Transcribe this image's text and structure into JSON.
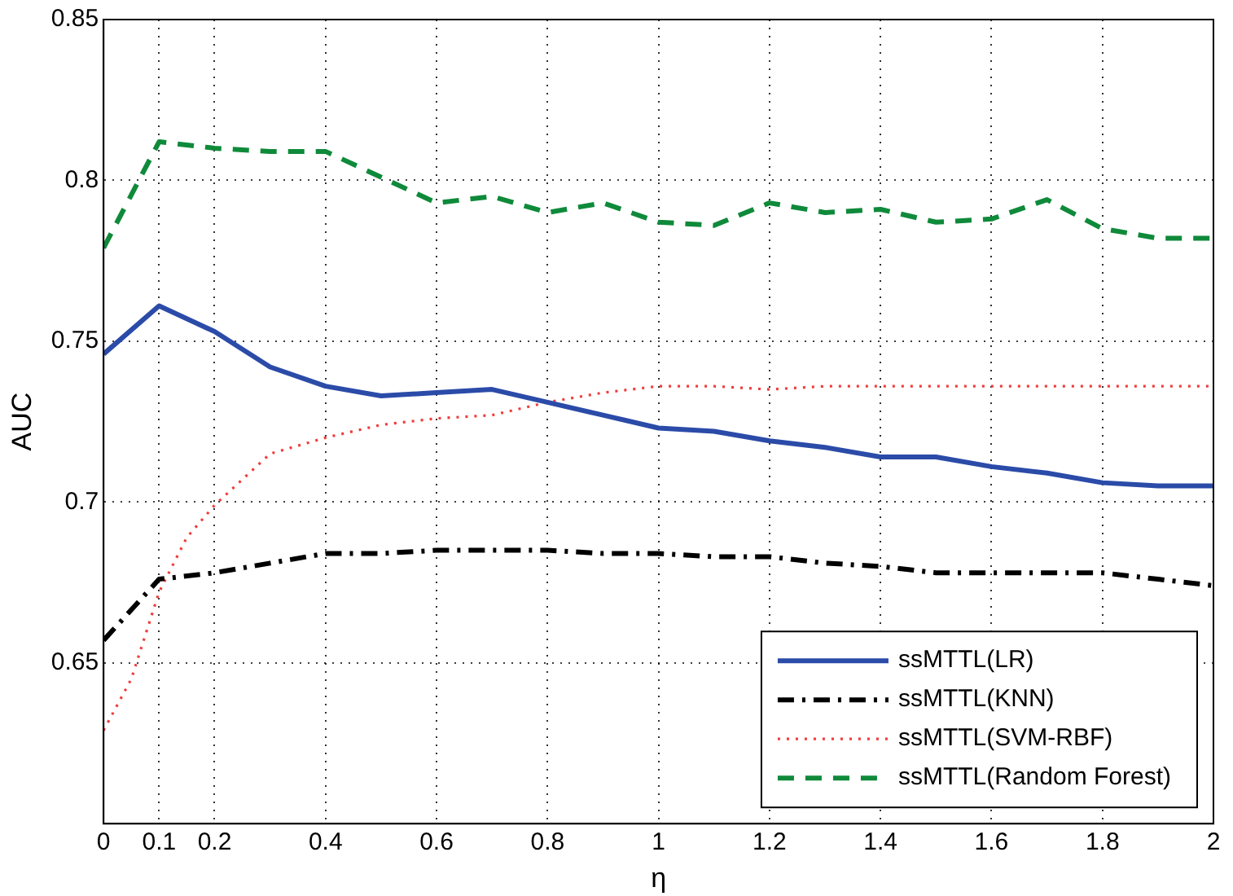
{
  "chart_data": {
    "type": "line",
    "xlabel": "η",
    "ylabel": "AUC",
    "x": [
      0,
      0.1,
      0.2,
      0.3,
      0.4,
      0.5,
      0.6,
      0.7,
      0.8,
      0.9,
      1.0,
      1.1,
      1.2,
      1.3,
      1.4,
      1.5,
      1.6,
      1.7,
      1.8,
      1.9,
      2.0
    ],
    "series": [
      {
        "name": "ssMTTL(LR)",
        "color": "#2b4ba8",
        "line_style": "solid",
        "values": [
          0.746,
          0.761,
          0.753,
          0.742,
          0.736,
          0.733,
          0.734,
          0.735,
          0.731,
          0.727,
          0.723,
          0.722,
          0.719,
          0.717,
          0.714,
          0.714,
          0.711,
          0.709,
          0.706,
          0.705,
          0.705
        ]
      },
      {
        "name": "ssMTTL(KNN)",
        "color": "#000000",
        "line_style": "dashdot",
        "values": [
          0.657,
          0.676,
          0.678,
          0.681,
          0.684,
          0.684,
          0.685,
          0.685,
          0.685,
          0.684,
          0.684,
          0.683,
          0.683,
          0.681,
          0.68,
          0.678,
          0.678,
          0.678,
          0.678,
          0.676,
          0.674
        ]
      },
      {
        "name": "ssMTTL(SVM-RBF)",
        "color": "#f03c3c",
        "line_style": "dotted",
        "x": [
          0,
          0.05,
          0.1,
          0.15,
          0.2,
          0.3,
          0.4,
          0.5,
          0.6,
          0.7,
          0.8,
          0.9,
          1.0,
          1.1,
          1.2,
          1.3,
          1.4,
          1.5,
          1.6,
          1.7,
          1.8,
          1.9,
          2.0
        ],
        "values": [
          0.629,
          0.645,
          0.672,
          0.689,
          0.699,
          0.715,
          0.72,
          0.724,
          0.726,
          0.727,
          0.731,
          0.734,
          0.736,
          0.736,
          0.735,
          0.736,
          0.736,
          0.736,
          0.736,
          0.736,
          0.736,
          0.736,
          0.736
        ]
      },
      {
        "name": "ssMTTL(Random Forest)",
        "color": "#0f8a3a",
        "line_style": "dashed",
        "values": [
          0.779,
          0.812,
          0.81,
          0.809,
          0.809,
          0.801,
          0.793,
          0.795,
          0.79,
          0.793,
          0.787,
          0.786,
          0.793,
          0.79,
          0.791,
          0.787,
          0.788,
          0.794,
          0.785,
          0.782,
          0.782
        ]
      }
    ],
    "xlim": [
      0,
      2
    ],
    "xticks": [
      0,
      0.1,
      0.2,
      0.4,
      0.6,
      0.8,
      1,
      1.2,
      1.4,
      1.6,
      1.8,
      2
    ],
    "ylim": [
      0.6,
      0.85
    ],
    "yticks": [
      0.65,
      0.7,
      0.75,
      0.8,
      0.85
    ],
    "grid": true,
    "legend": "bottom right",
    "marker": "none"
  }
}
